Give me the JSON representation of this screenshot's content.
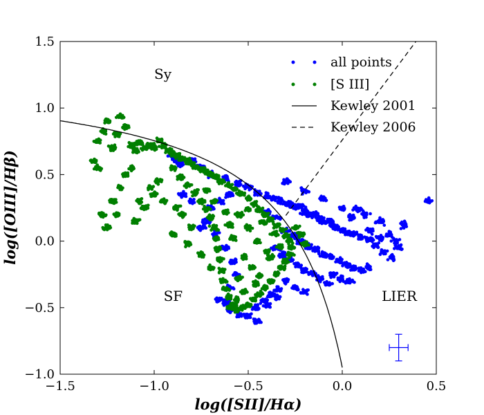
{
  "chart_data": {
    "type": "scatter",
    "title": "",
    "xlabel": "log([SII]/Hα)",
    "ylabel": "log([OIII]/Hβ)",
    "xlim": [
      -1.5,
      0.5
    ],
    "ylim": [
      -1.0,
      1.5
    ],
    "xticks": [
      -1.5,
      -1.0,
      -0.5,
      0.0,
      0.5
    ],
    "yticks": [
      -1.0,
      -0.5,
      0.0,
      0.5,
      1.0,
      1.5
    ],
    "xtick_labels": [
      "−1.5",
      "−1.0",
      "−0.5",
      "0.0",
      "0.5"
    ],
    "ytick_labels": [
      "−1.0",
      "−0.5",
      "0.0",
      "0.5",
      "1.0",
      "1.5"
    ],
    "legend_position": "top-right",
    "series": [
      {
        "name": "all points",
        "kind": "scatter",
        "color": "#0000ff",
        "points": [
          [
            -0.9,
            0.63
          ],
          [
            -0.88,
            0.6
          ],
          [
            -0.86,
            0.58
          ],
          [
            -0.8,
            0.6
          ],
          [
            -0.75,
            0.56
          ],
          [
            -0.7,
            0.5
          ],
          [
            -0.62,
            0.47
          ],
          [
            -0.55,
            0.43
          ],
          [
            -0.5,
            0.41
          ],
          [
            -0.45,
            0.36
          ],
          [
            -0.4,
            0.34
          ],
          [
            -0.36,
            0.32
          ],
          [
            -0.33,
            0.3
          ],
          [
            -0.3,
            0.28
          ],
          [
            -0.27,
            0.27
          ],
          [
            -0.25,
            0.25
          ],
          [
            -0.22,
            0.26
          ],
          [
            -0.2,
            0.22
          ],
          [
            -0.18,
            0.2
          ],
          [
            -0.15,
            0.2
          ],
          [
            -0.12,
            0.17
          ],
          [
            -0.1,
            0.15
          ],
          [
            -0.07,
            0.15
          ],
          [
            -0.05,
            0.12
          ],
          [
            -0.03,
            0.1
          ],
          [
            0.0,
            0.08
          ],
          [
            0.03,
            0.06
          ],
          [
            0.06,
            0.05
          ],
          [
            0.1,
            0.03
          ],
          [
            0.14,
            0.01
          ],
          [
            0.18,
            -0.03
          ],
          [
            0.22,
            -0.08
          ],
          [
            0.26,
            -0.12
          ],
          [
            0.33,
            0.12
          ],
          [
            0.46,
            0.3
          ],
          [
            -0.3,
            0.08
          ],
          [
            -0.26,
            0.04
          ],
          [
            -0.22,
            0.0
          ],
          [
            -0.18,
            -0.04
          ],
          [
            -0.14,
            -0.06
          ],
          [
            -0.1,
            -0.1
          ],
          [
            -0.06,
            -0.12
          ],
          [
            -0.02,
            -0.15
          ],
          [
            0.02,
            -0.18
          ],
          [
            0.06,
            -0.2
          ],
          [
            0.1,
            -0.22
          ],
          [
            0.14,
            -0.2
          ],
          [
            -0.35,
            -0.05
          ],
          [
            -0.32,
            -0.1
          ],
          [
            -0.28,
            -0.14
          ],
          [
            -0.24,
            -0.18
          ],
          [
            -0.2,
            -0.22
          ],
          [
            -0.16,
            -0.24
          ],
          [
            -0.12,
            -0.28
          ],
          [
            -0.08,
            -0.32
          ],
          [
            -0.3,
            -0.3
          ],
          [
            -0.34,
            -0.36
          ],
          [
            -0.38,
            -0.4
          ],
          [
            -0.42,
            -0.45
          ],
          [
            -0.46,
            -0.5
          ],
          [
            -0.5,
            -0.56
          ],
          [
            -0.55,
            -0.55
          ],
          [
            -0.6,
            -0.52
          ],
          [
            -0.62,
            -0.46
          ],
          [
            -0.45,
            -0.6
          ],
          [
            -0.4,
            -0.48
          ],
          [
            -0.35,
            -0.42
          ],
          [
            -0.25,
            -0.35
          ],
          [
            -0.2,
            -0.38
          ],
          [
            0.2,
            0.15
          ],
          [
            0.25,
            0.05
          ],
          [
            0.28,
            0.0
          ],
          [
            0.3,
            -0.05
          ],
          [
            0.12,
            0.2
          ],
          [
            0.08,
            0.24
          ],
          [
            -0.6,
            0.35
          ],
          [
            -0.65,
            0.3
          ],
          [
            -0.7,
            0.25
          ],
          [
            -0.72,
            0.15
          ],
          [
            -0.68,
            0.05
          ],
          [
            -0.62,
            -0.05
          ],
          [
            -0.58,
            -0.15
          ],
          [
            -0.56,
            -0.25
          ],
          [
            -0.6,
            -0.35
          ],
          [
            -0.66,
            -0.44
          ],
          [
            -0.8,
            0.3
          ],
          [
            -0.85,
            0.35
          ],
          [
            -0.75,
            0.1
          ],
          [
            -0.3,
            0.45
          ],
          [
            -0.2,
            0.38
          ],
          [
            -0.1,
            0.32
          ],
          [
            0.0,
            0.25
          ],
          [
            0.05,
            0.18
          ],
          [
            0.15,
            0.08
          ],
          [
            0.2,
            0.02
          ],
          [
            -0.05,
            -0.25
          ],
          [
            0.0,
            -0.28
          ],
          [
            0.04,
            -0.3
          ],
          [
            -0.4,
            0.22
          ],
          [
            -0.35,
            0.18
          ]
        ]
      },
      {
        "name": "[S III]",
        "kind": "scatter",
        "color": "#007f00",
        "points": [
          [
            -1.3,
            0.75
          ],
          [
            -1.27,
            0.82
          ],
          [
            -1.25,
            0.9
          ],
          [
            -1.22,
            0.7
          ],
          [
            -1.2,
            0.8
          ],
          [
            -1.18,
            0.94
          ],
          [
            -1.15,
            0.86
          ],
          [
            -1.12,
            0.72
          ],
          [
            -1.1,
            0.68
          ],
          [
            -1.08,
            0.74
          ],
          [
            -1.05,
            0.7
          ],
          [
            -1.02,
            0.72
          ],
          [
            -1.0,
            0.7
          ],
          [
            -0.97,
            0.76
          ],
          [
            -0.95,
            0.72
          ],
          [
            -1.28,
            0.2
          ],
          [
            -1.25,
            0.1
          ],
          [
            -1.22,
            0.3
          ],
          [
            -1.18,
            0.4
          ],
          [
            -1.15,
            0.5
          ],
          [
            -1.12,
            0.55
          ],
          [
            -1.08,
            0.3
          ],
          [
            -1.05,
            0.25
          ],
          [
            -1.02,
            0.4
          ],
          [
            -0.98,
            0.45
          ],
          [
            -1.3,
            0.55
          ],
          [
            -1.32,
            0.6
          ],
          [
            -1.2,
            0.2
          ],
          [
            -1.1,
            0.15
          ],
          [
            -1.0,
            0.35
          ],
          [
            -0.92,
            0.68
          ],
          [
            -0.9,
            0.66
          ],
          [
            -0.88,
            0.64
          ],
          [
            -0.85,
            0.62
          ],
          [
            -0.82,
            0.6
          ],
          [
            -0.8,
            0.58
          ],
          [
            -0.78,
            0.56
          ],
          [
            -0.75,
            0.54
          ],
          [
            -0.72,
            0.52
          ],
          [
            -0.7,
            0.5
          ],
          [
            -0.67,
            0.48
          ],
          [
            -0.64,
            0.45
          ],
          [
            -0.6,
            0.42
          ],
          [
            -0.57,
            0.39
          ],
          [
            -0.54,
            0.36
          ],
          [
            -0.5,
            0.32
          ],
          [
            -0.47,
            0.28
          ],
          [
            -0.44,
            0.24
          ],
          [
            -0.41,
            0.2
          ],
          [
            -0.38,
            0.16
          ],
          [
            -0.35,
            0.12
          ],
          [
            -0.32,
            0.08
          ],
          [
            -0.3,
            0.04
          ],
          [
            -0.28,
            0.0
          ],
          [
            -0.27,
            -0.05
          ],
          [
            -0.28,
            -0.1
          ],
          [
            -0.3,
            -0.15
          ],
          [
            -0.32,
            -0.2
          ],
          [
            -0.35,
            -0.25
          ],
          [
            -0.38,
            -0.3
          ],
          [
            -0.41,
            -0.35
          ],
          [
            -0.44,
            -0.4
          ],
          [
            -0.47,
            -0.44
          ],
          [
            -0.5,
            -0.48
          ],
          [
            -0.53,
            -0.5
          ],
          [
            -0.56,
            -0.52
          ],
          [
            -0.58,
            -0.48
          ],
          [
            -0.6,
            -0.42
          ],
          [
            -0.62,
            -0.36
          ],
          [
            -0.63,
            -0.3
          ],
          [
            -0.64,
            -0.22
          ],
          [
            -0.65,
            -0.14
          ],
          [
            -0.66,
            -0.06
          ],
          [
            -0.67,
            0.02
          ],
          [
            -0.68,
            0.1
          ],
          [
            -0.7,
            0.18
          ],
          [
            -0.72,
            0.24
          ],
          [
            -0.75,
            0.3
          ],
          [
            -0.78,
            0.36
          ],
          [
            -0.82,
            0.42
          ],
          [
            -0.86,
            0.48
          ],
          [
            -0.9,
            0.55
          ],
          [
            -0.55,
            0.2
          ],
          [
            -0.5,
            0.1
          ],
          [
            -0.45,
            0.0
          ],
          [
            -0.4,
            -0.08
          ],
          [
            -0.52,
            -0.12
          ],
          [
            -0.48,
            -0.2
          ],
          [
            -0.44,
            -0.26
          ],
          [
            -0.55,
            -0.28
          ],
          [
            -0.58,
            0.02
          ],
          [
            -0.6,
            0.12
          ],
          [
            -0.62,
            0.22
          ],
          [
            -0.5,
            0.24
          ],
          [
            -0.42,
            0.14
          ],
          [
            -0.36,
            0.06
          ],
          [
            -0.33,
            -0.04
          ],
          [
            -0.38,
            -0.12
          ],
          [
            -0.46,
            -0.32
          ],
          [
            -0.52,
            -0.38
          ],
          [
            -0.56,
            -0.44
          ],
          [
            -0.6,
            -0.5
          ],
          [
            -0.25,
            0.1
          ],
          [
            -0.22,
            0.05
          ],
          [
            -0.2,
            -0.02
          ],
          [
            -0.8,
            0.1
          ],
          [
            -0.85,
            0.2
          ],
          [
            -0.88,
            0.25
          ],
          [
            -0.95,
            0.3
          ],
          [
            -0.9,
            0.05
          ],
          [
            -0.82,
            -0.02
          ],
          [
            -0.75,
            -0.1
          ],
          [
            -0.7,
            -0.2
          ],
          [
            -0.72,
            0.38
          ],
          [
            -0.68,
            0.3
          ]
        ]
      }
    ],
    "lines": [
      {
        "name": "Kewley 2001",
        "style": "solid",
        "color": "#000000",
        "formula": "y = 0.72 / (x - 0.32) + 1.30",
        "x_range": [
          -1.5,
          0.0
        ]
      },
      {
        "name": "Kewley 2006",
        "style": "dashed",
        "color": "#000000",
        "formula": "y = 1.89 x + 0.76",
        "x_range": [
          -0.3,
          0.5
        ]
      }
    ],
    "error_bar": {
      "x": 0.3,
      "y": -0.8,
      "xerr": 0.05,
      "yerr": 0.1,
      "color": "#0000ff"
    },
    "annotations": [
      {
        "text": "Sy",
        "x": -1.0,
        "y": 1.22
      },
      {
        "text": "SF",
        "x": -0.95,
        "y": -0.45
      },
      {
        "text": "LIER",
        "x": 0.21,
        "y": -0.45
      }
    ]
  }
}
